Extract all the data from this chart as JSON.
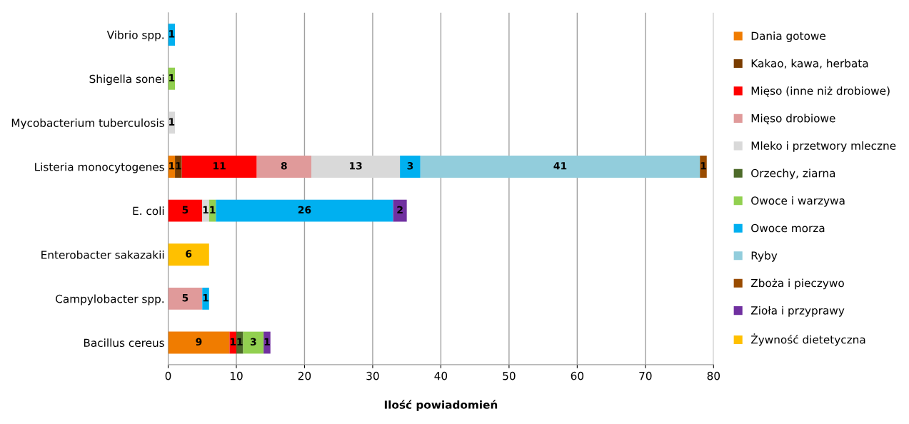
{
  "chart_data": {
    "type": "bar",
    "orientation": "horizontal",
    "stacked": true,
    "data_labels": true,
    "grid": "x",
    "legend": "right",
    "xlabel": "Ilość powiadomień",
    "xlim": [
      0,
      80
    ],
    "xticks": [
      0,
      10,
      20,
      30,
      40,
      50,
      60,
      70,
      80
    ],
    "categories": [
      "Vibrio spp.",
      "Shigella sonei",
      "Mycobacterium tuberculosis",
      "Listeria monocytogenes",
      "E. coli",
      "Enterobacter sakazakii",
      "Campylobacter spp.",
      "Bacillus cereus"
    ],
    "series": [
      {
        "name": "Dania gotowe",
        "color": "#f07c00",
        "values": [
          null,
          null,
          null,
          1,
          null,
          null,
          null,
          9
        ]
      },
      {
        "name": "Kakao, kawa, herbata",
        "color": "#7a3d00",
        "values": [
          null,
          null,
          null,
          1,
          null,
          null,
          null,
          null
        ]
      },
      {
        "name": "Mięso (inne niż drobiowe)",
        "color": "#ff0000",
        "values": [
          null,
          null,
          null,
          11,
          5,
          null,
          null,
          1
        ]
      },
      {
        "name": "Mięso drobiowe",
        "color": "#e09a9a",
        "values": [
          null,
          null,
          null,
          8,
          null,
          null,
          5,
          null
        ]
      },
      {
        "name": "Mleko i przetwory mleczne",
        "color": "#d9d9d9",
        "values": [
          null,
          null,
          1,
          13,
          1,
          null,
          null,
          null
        ]
      },
      {
        "name": "Orzechy, ziarna",
        "color": "#4e6b2a",
        "values": [
          null,
          null,
          null,
          null,
          null,
          null,
          null,
          1
        ]
      },
      {
        "name": "Owoce i warzywa",
        "color": "#92d050",
        "values": [
          null,
          1,
          null,
          null,
          1,
          null,
          null,
          3
        ]
      },
      {
        "name": "Owoce morza",
        "color": "#00b0f0",
        "values": [
          1,
          null,
          null,
          3,
          26,
          null,
          1,
          null
        ]
      },
      {
        "name": "Ryby",
        "color": "#92cddc",
        "values": [
          null,
          null,
          null,
          41,
          null,
          null,
          null,
          null
        ]
      },
      {
        "name": "Zboża i pieczywo",
        "color": "#994c00",
        "values": [
          null,
          null,
          null,
          1,
          null,
          null,
          null,
          null
        ]
      },
      {
        "name": "Zioła i przyprawy",
        "color": "#7030a0",
        "values": [
          null,
          null,
          null,
          null,
          2,
          null,
          null,
          1
        ]
      },
      {
        "name": "Żywność dietetyczna",
        "color": "#ffc000",
        "values": [
          null,
          null,
          null,
          null,
          null,
          6,
          null,
          null
        ]
      }
    ]
  }
}
